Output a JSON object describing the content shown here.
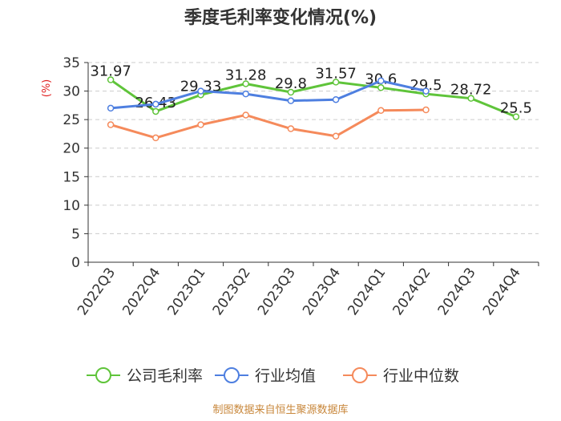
{
  "title": "季度毛利率变化情况(%)",
  "source": "制图数据来自恒生聚源数据库",
  "colors": {
    "company": "#5fc43a",
    "industry_avg": "#4e7fe0",
    "industry_median": "#f58a5b"
  },
  "chart_data": {
    "type": "line",
    "title": "季度毛利率变化情况(%)",
    "ylabel": "(%)",
    "xlabel": "",
    "ylim": [
      0,
      35
    ],
    "yticks": [
      0,
      5,
      10,
      15,
      20,
      25,
      30,
      35
    ],
    "grid": true,
    "legend": "bottom",
    "categories": [
      "2022Q3",
      "2022Q4",
      "2023Q1",
      "2023Q2",
      "2023Q3",
      "2023Q4",
      "2024Q1",
      "2024Q2",
      "2024Q3",
      "2024Q4"
    ],
    "series": [
      {
        "name": "公司毛利率",
        "color": "#5fc43a",
        "labels": true,
        "values": [
          31.97,
          26.43,
          29.33,
          31.28,
          29.8,
          31.57,
          30.6,
          29.5,
          28.72,
          25.5
        ]
      },
      {
        "name": "行业均值",
        "color": "#4e7fe0",
        "labels": false,
        "values": [
          27.0,
          27.7,
          30.0,
          29.5,
          28.3,
          28.5,
          31.8,
          30.0,
          null,
          null
        ]
      },
      {
        "name": "行业中位数",
        "color": "#f58a5b",
        "labels": false,
        "values": [
          24.1,
          21.8,
          24.1,
          25.8,
          23.4,
          22.1,
          26.6,
          26.7,
          null,
          null
        ]
      }
    ]
  }
}
